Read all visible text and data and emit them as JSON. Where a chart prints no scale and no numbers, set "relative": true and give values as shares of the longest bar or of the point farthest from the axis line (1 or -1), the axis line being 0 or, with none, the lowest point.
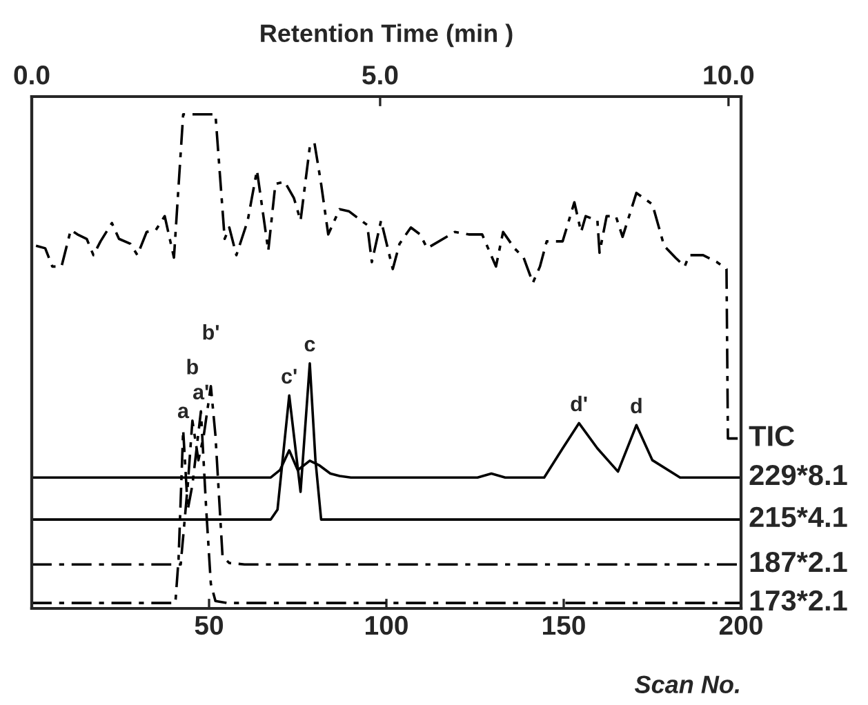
{
  "chart_data": {
    "type": "line",
    "relative": true,
    "legend": false,
    "grid": false,
    "tick_labels": "x",
    "xlabel": "Scan No.",
    "x2label": "Retention Time (min )",
    "xlim": [
      0,
      200
    ],
    "xticks": [
      50,
      100,
      150,
      200
    ],
    "x2lim": [
      0,
      10.18
    ],
    "x2ticks": [
      {
        "value": 0,
        "label": "0.0"
      },
      {
        "value": 5,
        "label": "5.0"
      },
      {
        "value": 10,
        "label": "10.0"
      }
    ],
    "series": [
      {
        "name": "TIC",
        "color": "#000000",
        "line_style": "dashed",
        "x": [
          1.2,
          3.8,
          5.8,
          8.4,
          11.0,
          12.9,
          15.5,
          17.4,
          19.4,
          22.6,
          24.6,
          27.8,
          29.8,
          32.4,
          35.0,
          37.5,
          40.1,
          42.7,
          51.8,
          54.4,
          55.7,
          57.7,
          60.9,
          63.5,
          66.7,
          68.7,
          71.3,
          73.9,
          75.8,
          78.4,
          79.7,
          81.6,
          83.6,
          86.8,
          89.4,
          94.6,
          95.9,
          98.5,
          101.8,
          103.7,
          106.9,
          109.5,
          111.5,
          119.3,
          123.2,
          127.0,
          130.9,
          132.9,
          136.1,
          138.7,
          141.3,
          143.3,
          145.2,
          149.7,
          153.0,
          154.9,
          156.2,
          159.5,
          160.1,
          162.1,
          164.7,
          166.6,
          170.5,
          175.0,
          178.3,
          181.5,
          184.1,
          185.4,
          189.3,
          193.2,
          195.9,
          196.3,
          199.8
        ],
        "values": [
          0.734,
          0.729,
          0.692,
          0.692,
          0.766,
          0.757,
          0.748,
          0.715,
          0.743,
          0.78,
          0.748,
          0.738,
          0.715,
          0.762,
          0.766,
          0.794,
          0.71,
          1.0,
          1.0,
          0.748,
          0.771,
          0.715,
          0.785,
          0.887,
          0.724,
          0.859,
          0.864,
          0.831,
          0.785,
          0.934,
          0.943,
          0.859,
          0.757,
          0.808,
          0.804,
          0.776,
          0.701,
          0.785,
          0.687,
          0.738,
          0.771,
          0.757,
          0.729,
          0.762,
          0.757,
          0.757,
          0.692,
          0.762,
          0.729,
          0.71,
          0.659,
          0.692,
          0.743,
          0.743,
          0.822,
          0.762,
          0.794,
          0.785,
          0.72,
          0.794,
          0.794,
          0.752,
          0.841,
          0.818,
          0.734,
          0.71,
          0.692,
          0.715,
          0.715,
          0.701,
          0.687,
          0.344,
          0.344
        ]
      },
      {
        "name": "229*8.1",
        "color": "#000000",
        "line_style": "solid",
        "x": [
          0,
          67.4,
          70,
          72.6,
          75,
          78.4,
          81,
          84.2,
          86.8,
          90,
          125.7,
          129.6,
          133.5,
          144.5,
          149.7,
          154.3,
          159.5,
          165.3,
          170.5,
          175.0,
          182.8,
          200
        ],
        "values": [
          0.265,
          0.265,
          0.28,
          0.32,
          0.28,
          0.299,
          0.29,
          0.273,
          0.268,
          0.265,
          0.265,
          0.273,
          0.265,
          0.265,
          0.324,
          0.375,
          0.324,
          0.277,
          0.371,
          0.3,
          0.265,
          0.265
        ]
      },
      {
        "name": "215*4.1",
        "color": "#000000",
        "line_style": "solid",
        "x": [
          0,
          67.4,
          69.3,
          72.6,
          75.8,
          78.4,
          80,
          81.6,
          200
        ],
        "values": [
          0.18,
          0.18,
          0.2,
          0.431,
          0.236,
          0.496,
          0.3,
          0.18,
          0.18
        ]
      },
      {
        "name": "187*2.1",
        "color": "#000000",
        "line_style": "dashed",
        "x": [
          0,
          42,
          44.0,
          45.3,
          47,
          48.5,
          50.5,
          51.8,
          53.8,
          55.7,
          60,
          200
        ],
        "values": [
          0.089,
          0.089,
          0.25,
          0.38,
          0.3,
          0.35,
          0.45,
          0.35,
          0.105,
          0.092,
          0.089,
          0.089
        ]
      },
      {
        "name": "173*2.1",
        "color": "#000000",
        "line_style": "dashed",
        "x": [
          0,
          40.5,
          41.4,
          42.7,
          44.0,
          45.3,
          47.7,
          49.2,
          50.5,
          51.8,
          55,
          200
        ],
        "values": [
          0.011,
          0.011,
          0.1,
          0.361,
          0.2,
          0.25,
          0.399,
          0.2,
          0.05,
          0.015,
          0.011,
          0.011
        ]
      }
    ],
    "annotations": [
      {
        "text": "a",
        "x": 42.7,
        "y": 0.361
      },
      {
        "text": "b",
        "x": 45.3,
        "y": 0.38
      },
      {
        "text": "a'",
        "x": 47.7,
        "y": 0.399
      },
      {
        "text": "b'",
        "x": 50.5,
        "y": 0.45
      },
      {
        "text": "c'",
        "x": 72.6,
        "y": 0.431
      },
      {
        "text": "c",
        "x": 78.4,
        "y": 0.496
      },
      {
        "text": "d'",
        "x": 154.3,
        "y": 0.375
      },
      {
        "text": "d",
        "x": 170.5,
        "y": 0.371
      }
    ]
  }
}
